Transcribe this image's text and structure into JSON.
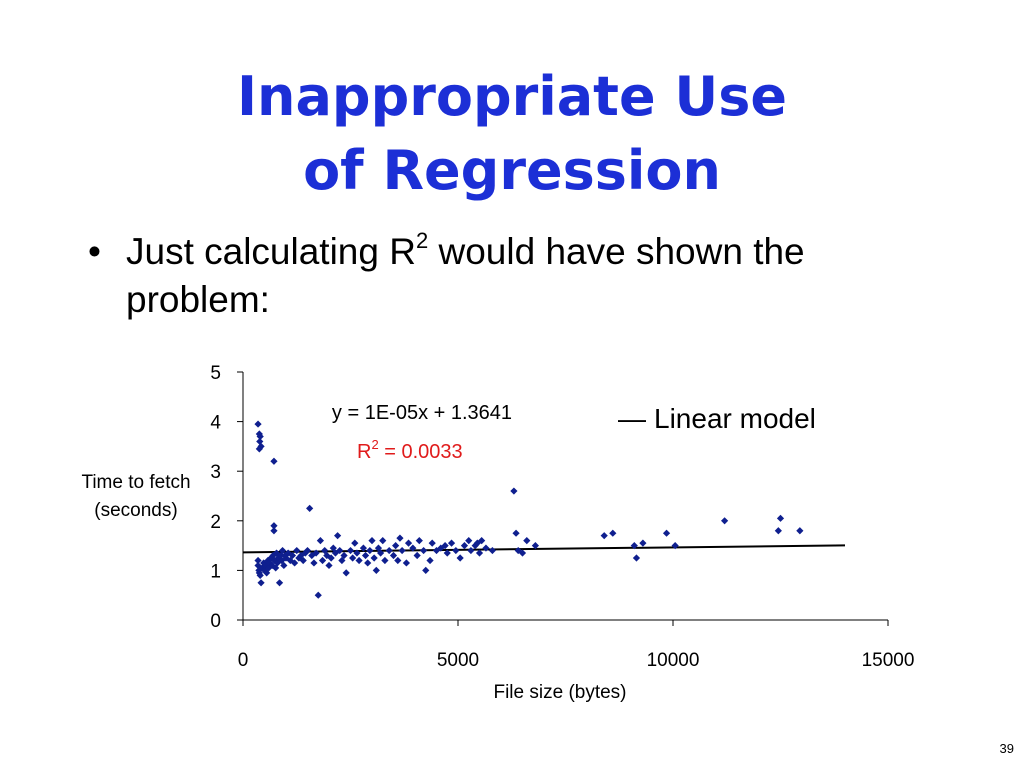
{
  "slide": {
    "title_lines": [
      "Inappropriate Use",
      "of Regression"
    ],
    "bullet": {
      "glyph": "•",
      "text_before": "Just calculating R",
      "superscript": "2",
      "text_after": " would have shown the problem:"
    },
    "page_number": "39"
  },
  "colors": {
    "title": "#1c2fd6",
    "points": "#0f1f8f",
    "fit_line": "#000000",
    "r2_text": "#e01b1b"
  },
  "chart_data": {
    "type": "scatter",
    "xlabel": "File size (bytes)",
    "ylabel_lines": [
      "Time to fetch",
      "(seconds)"
    ],
    "xlim": [
      0,
      15000
    ],
    "ylim": [
      0,
      5
    ],
    "x_ticks": [
      0,
      5000,
      10000,
      15000
    ],
    "y_ticks": [
      0,
      1,
      2,
      3,
      4,
      5
    ],
    "grid": false,
    "legend": {
      "position": "top-right",
      "symbol": "—",
      "label": "Linear model"
    },
    "annotations": {
      "equation": "y = 1E-05x + 1.3641",
      "r2_prefix": "R",
      "r2_superscript": "2",
      "r2_value": " = 0.0033"
    },
    "fit_line": {
      "slope": 1e-05,
      "intercept": 1.3641,
      "x_range": [
        0,
        14000
      ]
    },
    "points": [
      [
        350,
        3.95
      ],
      [
        380,
        3.75
      ],
      [
        400,
        3.7
      ],
      [
        390,
        3.6
      ],
      [
        420,
        3.5
      ],
      [
        380,
        3.45
      ],
      [
        720,
        3.2
      ],
      [
        720,
        1.9
      ],
      [
        720,
        1.8
      ],
      [
        1550,
        2.25
      ],
      [
        1750,
        0.5
      ],
      [
        350,
        1.2
      ],
      [
        350,
        1.1
      ],
      [
        370,
        1.0
      ],
      [
        380,
        0.95
      ],
      [
        400,
        0.9
      ],
      [
        420,
        0.75
      ],
      [
        450,
        1.05
      ],
      [
        480,
        1.15
      ],
      [
        500,
        1.0
      ],
      [
        520,
        1.1
      ],
      [
        550,
        0.95
      ],
      [
        580,
        1.2
      ],
      [
        600,
        1.05
      ],
      [
        620,
        1.15
      ],
      [
        650,
        1.25
      ],
      [
        680,
        1.1
      ],
      [
        700,
        1.3
      ],
      [
        730,
        1.2
      ],
      [
        760,
        1.05
      ],
      [
        780,
        1.35
      ],
      [
        800,
        1.15
      ],
      [
        820,
        1.25
      ],
      [
        850,
        0.75
      ],
      [
        880,
        1.3
      ],
      [
        900,
        1.2
      ],
      [
        920,
        1.4
      ],
      [
        950,
        1.1
      ],
      [
        980,
        1.3
      ],
      [
        1000,
        1.25
      ],
      [
        1050,
        1.35
      ],
      [
        1100,
        1.2
      ],
      [
        1150,
        1.3
      ],
      [
        1200,
        1.15
      ],
      [
        1250,
        1.4
      ],
      [
        1300,
        1.25
      ],
      [
        1350,
        1.3
      ],
      [
        1400,
        1.2
      ],
      [
        1450,
        1.35
      ],
      [
        1500,
        1.4
      ],
      [
        1600,
        1.3
      ],
      [
        1650,
        1.15
      ],
      [
        1700,
        1.35
      ],
      [
        1800,
        1.6
      ],
      [
        1850,
        1.2
      ],
      [
        1900,
        1.4
      ],
      [
        1950,
        1.3
      ],
      [
        2000,
        1.1
      ],
      [
        2050,
        1.25
      ],
      [
        2100,
        1.45
      ],
      [
        2150,
        1.35
      ],
      [
        2200,
        1.7
      ],
      [
        2250,
        1.4
      ],
      [
        2300,
        1.2
      ],
      [
        2350,
        1.3
      ],
      [
        2400,
        0.95
      ],
      [
        2500,
        1.4
      ],
      [
        2550,
        1.25
      ],
      [
        2600,
        1.55
      ],
      [
        2650,
        1.35
      ],
      [
        2700,
        1.2
      ],
      [
        2800,
        1.45
      ],
      [
        2850,
        1.3
      ],
      [
        2900,
        1.15
      ],
      [
        2950,
        1.4
      ],
      [
        3000,
        1.6
      ],
      [
        3050,
        1.25
      ],
      [
        3100,
        1.0
      ],
      [
        3150,
        1.45
      ],
      [
        3200,
        1.35
      ],
      [
        3250,
        1.6
      ],
      [
        3300,
        1.2
      ],
      [
        3400,
        1.4
      ],
      [
        3500,
        1.3
      ],
      [
        3550,
        1.5
      ],
      [
        3600,
        1.2
      ],
      [
        3650,
        1.65
      ],
      [
        3700,
        1.4
      ],
      [
        3800,
        1.15
      ],
      [
        3850,
        1.55
      ],
      [
        3950,
        1.45
      ],
      [
        4050,
        1.3
      ],
      [
        4100,
        1.6
      ],
      [
        4200,
        1.4
      ],
      [
        4250,
        1.0
      ],
      [
        4350,
        1.2
      ],
      [
        4400,
        1.55
      ],
      [
        4500,
        1.4
      ],
      [
        4600,
        1.45
      ],
      [
        4700,
        1.5
      ],
      [
        4750,
        1.35
      ],
      [
        4850,
        1.55
      ],
      [
        4950,
        1.4
      ],
      [
        5050,
        1.25
      ],
      [
        5150,
        1.5
      ],
      [
        5250,
        1.6
      ],
      [
        5300,
        1.4
      ],
      [
        5400,
        1.5
      ],
      [
        5450,
        1.55
      ],
      [
        5500,
        1.35
      ],
      [
        5550,
        1.6
      ],
      [
        5650,
        1.45
      ],
      [
        5800,
        1.4
      ],
      [
        6300,
        2.6
      ],
      [
        6350,
        1.75
      ],
      [
        6400,
        1.4
      ],
      [
        6500,
        1.35
      ],
      [
        6600,
        1.6
      ],
      [
        6800,
        1.5
      ],
      [
        8400,
        1.7
      ],
      [
        8600,
        1.75
      ],
      [
        9100,
        1.5
      ],
      [
        9150,
        1.25
      ],
      [
        9300,
        1.55
      ],
      [
        9850,
        1.75
      ],
      [
        10050,
        1.5
      ],
      [
        11200,
        2.0
      ],
      [
        12450,
        1.8
      ],
      [
        12500,
        2.05
      ],
      [
        12950,
        1.8
      ]
    ]
  }
}
